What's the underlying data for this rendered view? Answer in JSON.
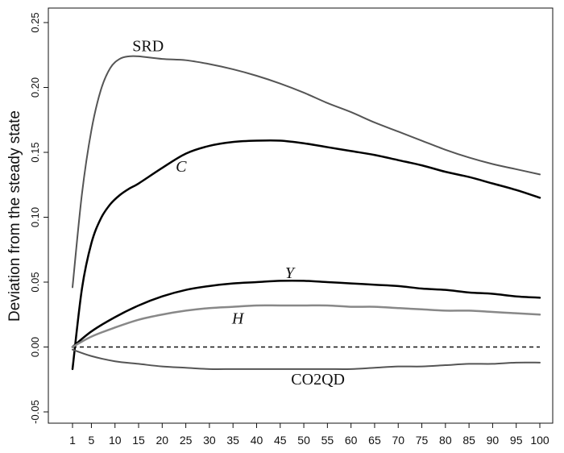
{
  "chart_data": {
    "type": "line",
    "title": "",
    "xlabel": "",
    "ylabel": "Deviation from the steady state",
    "xlim": [
      1,
      100
    ],
    "ylim": [
      -0.05,
      0.25
    ],
    "x_ticks": [
      1,
      5,
      10,
      15,
      20,
      25,
      30,
      35,
      40,
      45,
      50,
      55,
      60,
      65,
      70,
      75,
      80,
      85,
      90,
      95,
      100
    ],
    "y_ticks": [
      -0.05,
      0.0,
      0.05,
      0.1,
      0.15,
      0.2,
      0.25
    ],
    "y_tick_labels": [
      "-0.05",
      "0.00",
      "0.05",
      "0.10",
      "0.15",
      "0.20",
      "0.25"
    ],
    "grid": false,
    "reference_line": {
      "y": 0.0,
      "style": "dashed"
    },
    "series": [
      {
        "name": "SRD",
        "italic": false,
        "color": "#555555",
        "width": 2,
        "x": [
          1,
          3,
          5,
          7,
          9,
          11,
          13,
          15,
          20,
          25,
          30,
          35,
          40,
          45,
          50,
          55,
          60,
          65,
          70,
          75,
          80,
          85,
          90,
          95,
          100
        ],
        "y": [
          0.046,
          0.118,
          0.167,
          0.198,
          0.215,
          0.222,
          0.224,
          0.224,
          0.222,
          0.221,
          0.218,
          0.214,
          0.209,
          0.203,
          0.196,
          0.188,
          0.181,
          0.173,
          0.166,
          0.159,
          0.152,
          0.146,
          0.141,
          0.137,
          0.133
        ]
      },
      {
        "name": "C",
        "italic": true,
        "color": "#000000",
        "width": 2.5,
        "x": [
          1,
          3,
          5,
          7,
          9,
          11,
          13,
          15,
          20,
          25,
          30,
          35,
          40,
          45,
          50,
          55,
          60,
          65,
          70,
          75,
          80,
          85,
          90,
          95,
          100
        ],
        "y": [
          -0.017,
          0.045,
          0.08,
          0.099,
          0.11,
          0.117,
          0.122,
          0.126,
          0.138,
          0.149,
          0.155,
          0.158,
          0.159,
          0.159,
          0.157,
          0.154,
          0.151,
          0.148,
          0.144,
          0.14,
          0.135,
          0.131,
          0.126,
          0.121,
          0.115
        ]
      },
      {
        "name": "Y",
        "italic": true,
        "color": "#000000",
        "width": 2.5,
        "x": [
          1,
          5,
          10,
          15,
          20,
          25,
          30,
          35,
          40,
          45,
          50,
          55,
          60,
          65,
          70,
          75,
          80,
          85,
          90,
          95,
          100
        ],
        "y": [
          0.0,
          0.012,
          0.023,
          0.032,
          0.039,
          0.044,
          0.047,
          0.049,
          0.05,
          0.051,
          0.051,
          0.05,
          0.049,
          0.048,
          0.047,
          0.045,
          0.044,
          0.042,
          0.041,
          0.039,
          0.038
        ]
      },
      {
        "name": "H",
        "italic": true,
        "color": "#888888",
        "width": 2.5,
        "x": [
          1,
          5,
          10,
          15,
          20,
          25,
          30,
          35,
          40,
          45,
          50,
          55,
          60,
          65,
          70,
          75,
          80,
          85,
          90,
          95,
          100
        ],
        "y": [
          0.0,
          0.008,
          0.015,
          0.021,
          0.025,
          0.028,
          0.03,
          0.031,
          0.032,
          0.032,
          0.032,
          0.032,
          0.031,
          0.031,
          0.03,
          0.029,
          0.028,
          0.028,
          0.027,
          0.026,
          0.025
        ]
      },
      {
        "name": "CO2QD",
        "italic": false,
        "color": "#555555",
        "width": 2,
        "x": [
          1,
          5,
          10,
          15,
          20,
          25,
          30,
          35,
          40,
          45,
          50,
          55,
          60,
          65,
          70,
          75,
          80,
          85,
          90,
          95,
          100
        ],
        "y": [
          -0.002,
          -0.007,
          -0.011,
          -0.013,
          -0.015,
          -0.016,
          -0.017,
          -0.017,
          -0.017,
          -0.017,
          -0.017,
          -0.017,
          -0.017,
          -0.016,
          -0.015,
          -0.015,
          -0.014,
          -0.013,
          -0.013,
          -0.012,
          -0.012
        ]
      }
    ],
    "annotations": [
      {
        "text": "SRD",
        "series": "SRD",
        "x": 17,
        "y": 0.228,
        "italic": false
      },
      {
        "text": "C",
        "series": "C",
        "x": 24,
        "y": 0.135,
        "italic": true
      },
      {
        "text": "Y",
        "series": "Y",
        "x": 47,
        "y": 0.053,
        "italic": true
      },
      {
        "text": "H",
        "series": "H",
        "x": 36,
        "y": 0.018,
        "italic": true
      },
      {
        "text": "CO2QD",
        "series": "CO2QD",
        "x": 53,
        "y": -0.029,
        "italic": false
      }
    ]
  }
}
